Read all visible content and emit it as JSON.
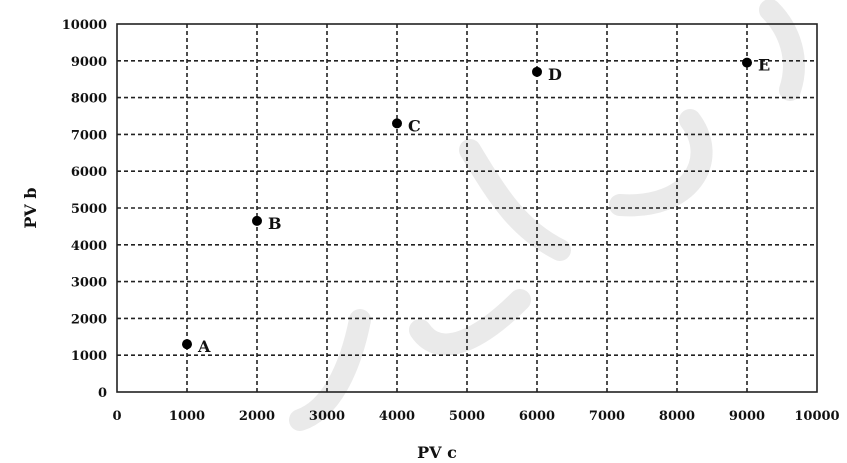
{
  "chart_data": {
    "type": "scatter",
    "title": "",
    "xlabel": "PV c",
    "ylabel": "PV b",
    "xlim": [
      0,
      10000
    ],
    "ylim": [
      0,
      10000
    ],
    "x_ticks": [
      0,
      1000,
      2000,
      3000,
      4000,
      5000,
      6000,
      7000,
      8000,
      9000,
      10000
    ],
    "y_ticks": [
      0,
      1000,
      2000,
      3000,
      4000,
      5000,
      6000,
      7000,
      8000,
      9000,
      10000
    ],
    "grid": true,
    "points": [
      {
        "label": "A",
        "x": 1000,
        "y": 1300
      },
      {
        "label": "B",
        "x": 2000,
        "y": 4650
      },
      {
        "label": "C",
        "x": 4000,
        "y": 7300
      },
      {
        "label": "D",
        "x": 6000,
        "y": 8700
      },
      {
        "label": "E",
        "x": 9000,
        "y": 8950
      }
    ],
    "marker_color": "#000000"
  }
}
